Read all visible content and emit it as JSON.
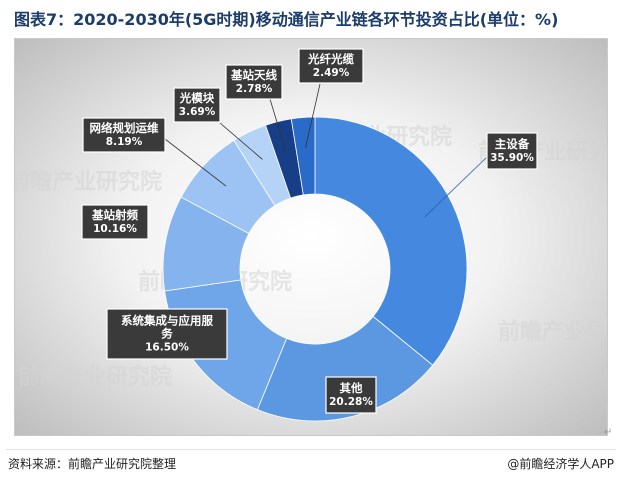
{
  "title": "图表7：2020-2030年(5G时期)移动通信产业链各环节投资占比(单位：%)",
  "footer": {
    "source": "资料来源：前瞻产业研究院整理",
    "brand": "@前瞻经济学人APP"
  },
  "watermark": "前瞻产业研究院",
  "colors": {
    "title": "#1c3c6a",
    "label_bg": "#3a3a3a",
    "label_text": "#ffffff"
  },
  "chart_data": {
    "type": "pie",
    "variant": "donut",
    "unit": "%",
    "slices": [
      {
        "name": "主设备",
        "value": 35.9,
        "label": "35.90%",
        "color": "#4489df"
      },
      {
        "name": "其他",
        "value": 20.28,
        "label": "20.28%",
        "color": "#5c98e2"
      },
      {
        "name": "系统集成与应用服务",
        "value": 16.5,
        "label": "16.50%",
        "color": "#6fa6e9"
      },
      {
        "name": "基站射频",
        "value": 10.16,
        "label": "10.16%",
        "color": "#84b3ee"
      },
      {
        "name": "网络规划运维",
        "value": 8.19,
        "label": "8.19%",
        "color": "#9cc3f3"
      },
      {
        "name": "光模块",
        "value": 3.69,
        "label": "3.69%",
        "color": "#b5d3f7"
      },
      {
        "name": "基站天线",
        "value": 2.78,
        "label": "2.78%",
        "color": "#163f88"
      },
      {
        "name": "光纤光缆",
        "value": 2.49,
        "label": "2.49%",
        "color": "#2a6bc9"
      }
    ]
  }
}
